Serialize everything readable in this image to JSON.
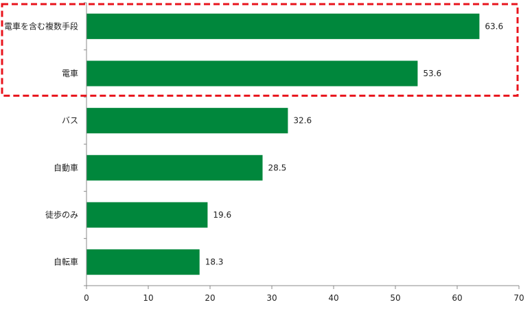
{
  "chart_data": {
    "type": "bar",
    "orientation": "horizontal",
    "categories": [
      "電車を含む複数手段",
      "電車",
      "バス",
      "自動車",
      "徒歩のみ",
      "自転車"
    ],
    "values": [
      63.6,
      53.6,
      32.6,
      28.5,
      19.6,
      18.3
    ],
    "xlim": [
      0,
      70
    ],
    "xticks": [
      0,
      10,
      20,
      30,
      40,
      50,
      60,
      70
    ],
    "title": "",
    "xlabel": "",
    "ylabel": "",
    "grid": false,
    "legend": "none",
    "bar_color": "#00873c",
    "highlight": {
      "categories": [
        "電車を含む複数手段",
        "電車"
      ],
      "style": "dashed-box",
      "color": "#e8141c"
    }
  }
}
